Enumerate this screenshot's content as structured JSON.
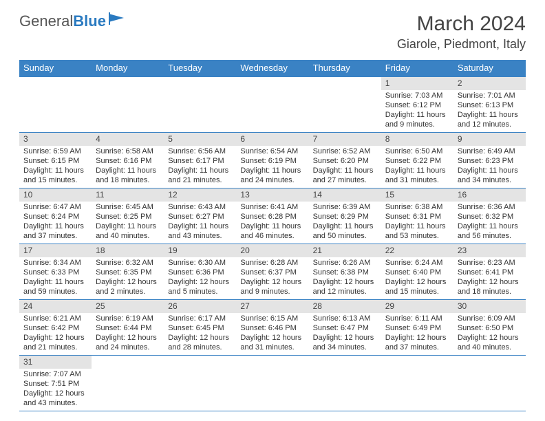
{
  "brand": {
    "part1": "General",
    "part2": "Blue"
  },
  "title": "March 2024",
  "location": "Giarole, Piedmont, Italy",
  "colors": {
    "header_bg": "#3a82c4",
    "header_text": "#ffffff",
    "daynum_bg": "#e4e4e4",
    "rule": "#3a82c4",
    "text": "#333333",
    "logo_grey": "#555555",
    "logo_blue": "#2a7ac0"
  },
  "day_headers": [
    "Sunday",
    "Monday",
    "Tuesday",
    "Wednesday",
    "Thursday",
    "Friday",
    "Saturday"
  ],
  "weeks": [
    [
      {
        "n": "",
        "sr": "",
        "ss": "",
        "dl": ""
      },
      {
        "n": "",
        "sr": "",
        "ss": "",
        "dl": ""
      },
      {
        "n": "",
        "sr": "",
        "ss": "",
        "dl": ""
      },
      {
        "n": "",
        "sr": "",
        "ss": "",
        "dl": ""
      },
      {
        "n": "",
        "sr": "",
        "ss": "",
        "dl": ""
      },
      {
        "n": "1",
        "sr": "Sunrise: 7:03 AM",
        "ss": "Sunset: 6:12 PM",
        "dl": "Daylight: 11 hours and 9 minutes."
      },
      {
        "n": "2",
        "sr": "Sunrise: 7:01 AM",
        "ss": "Sunset: 6:13 PM",
        "dl": "Daylight: 11 hours and 12 minutes."
      }
    ],
    [
      {
        "n": "3",
        "sr": "Sunrise: 6:59 AM",
        "ss": "Sunset: 6:15 PM",
        "dl": "Daylight: 11 hours and 15 minutes."
      },
      {
        "n": "4",
        "sr": "Sunrise: 6:58 AM",
        "ss": "Sunset: 6:16 PM",
        "dl": "Daylight: 11 hours and 18 minutes."
      },
      {
        "n": "5",
        "sr": "Sunrise: 6:56 AM",
        "ss": "Sunset: 6:17 PM",
        "dl": "Daylight: 11 hours and 21 minutes."
      },
      {
        "n": "6",
        "sr": "Sunrise: 6:54 AM",
        "ss": "Sunset: 6:19 PM",
        "dl": "Daylight: 11 hours and 24 minutes."
      },
      {
        "n": "7",
        "sr": "Sunrise: 6:52 AM",
        "ss": "Sunset: 6:20 PM",
        "dl": "Daylight: 11 hours and 27 minutes."
      },
      {
        "n": "8",
        "sr": "Sunrise: 6:50 AM",
        "ss": "Sunset: 6:22 PM",
        "dl": "Daylight: 11 hours and 31 minutes."
      },
      {
        "n": "9",
        "sr": "Sunrise: 6:49 AM",
        "ss": "Sunset: 6:23 PM",
        "dl": "Daylight: 11 hours and 34 minutes."
      }
    ],
    [
      {
        "n": "10",
        "sr": "Sunrise: 6:47 AM",
        "ss": "Sunset: 6:24 PM",
        "dl": "Daylight: 11 hours and 37 minutes."
      },
      {
        "n": "11",
        "sr": "Sunrise: 6:45 AM",
        "ss": "Sunset: 6:25 PM",
        "dl": "Daylight: 11 hours and 40 minutes."
      },
      {
        "n": "12",
        "sr": "Sunrise: 6:43 AM",
        "ss": "Sunset: 6:27 PM",
        "dl": "Daylight: 11 hours and 43 minutes."
      },
      {
        "n": "13",
        "sr": "Sunrise: 6:41 AM",
        "ss": "Sunset: 6:28 PM",
        "dl": "Daylight: 11 hours and 46 minutes."
      },
      {
        "n": "14",
        "sr": "Sunrise: 6:39 AM",
        "ss": "Sunset: 6:29 PM",
        "dl": "Daylight: 11 hours and 50 minutes."
      },
      {
        "n": "15",
        "sr": "Sunrise: 6:38 AM",
        "ss": "Sunset: 6:31 PM",
        "dl": "Daylight: 11 hours and 53 minutes."
      },
      {
        "n": "16",
        "sr": "Sunrise: 6:36 AM",
        "ss": "Sunset: 6:32 PM",
        "dl": "Daylight: 11 hours and 56 minutes."
      }
    ],
    [
      {
        "n": "17",
        "sr": "Sunrise: 6:34 AM",
        "ss": "Sunset: 6:33 PM",
        "dl": "Daylight: 11 hours and 59 minutes."
      },
      {
        "n": "18",
        "sr": "Sunrise: 6:32 AM",
        "ss": "Sunset: 6:35 PM",
        "dl": "Daylight: 12 hours and 2 minutes."
      },
      {
        "n": "19",
        "sr": "Sunrise: 6:30 AM",
        "ss": "Sunset: 6:36 PM",
        "dl": "Daylight: 12 hours and 5 minutes."
      },
      {
        "n": "20",
        "sr": "Sunrise: 6:28 AM",
        "ss": "Sunset: 6:37 PM",
        "dl": "Daylight: 12 hours and 9 minutes."
      },
      {
        "n": "21",
        "sr": "Sunrise: 6:26 AM",
        "ss": "Sunset: 6:38 PM",
        "dl": "Daylight: 12 hours and 12 minutes."
      },
      {
        "n": "22",
        "sr": "Sunrise: 6:24 AM",
        "ss": "Sunset: 6:40 PM",
        "dl": "Daylight: 12 hours and 15 minutes."
      },
      {
        "n": "23",
        "sr": "Sunrise: 6:23 AM",
        "ss": "Sunset: 6:41 PM",
        "dl": "Daylight: 12 hours and 18 minutes."
      }
    ],
    [
      {
        "n": "24",
        "sr": "Sunrise: 6:21 AM",
        "ss": "Sunset: 6:42 PM",
        "dl": "Daylight: 12 hours and 21 minutes."
      },
      {
        "n": "25",
        "sr": "Sunrise: 6:19 AM",
        "ss": "Sunset: 6:44 PM",
        "dl": "Daylight: 12 hours and 24 minutes."
      },
      {
        "n": "26",
        "sr": "Sunrise: 6:17 AM",
        "ss": "Sunset: 6:45 PM",
        "dl": "Daylight: 12 hours and 28 minutes."
      },
      {
        "n": "27",
        "sr": "Sunrise: 6:15 AM",
        "ss": "Sunset: 6:46 PM",
        "dl": "Daylight: 12 hours and 31 minutes."
      },
      {
        "n": "28",
        "sr": "Sunrise: 6:13 AM",
        "ss": "Sunset: 6:47 PM",
        "dl": "Daylight: 12 hours and 34 minutes."
      },
      {
        "n": "29",
        "sr": "Sunrise: 6:11 AM",
        "ss": "Sunset: 6:49 PM",
        "dl": "Daylight: 12 hours and 37 minutes."
      },
      {
        "n": "30",
        "sr": "Sunrise: 6:09 AM",
        "ss": "Sunset: 6:50 PM",
        "dl": "Daylight: 12 hours and 40 minutes."
      }
    ],
    [
      {
        "n": "31",
        "sr": "Sunrise: 7:07 AM",
        "ss": "Sunset: 7:51 PM",
        "dl": "Daylight: 12 hours and 43 minutes."
      },
      {
        "n": "",
        "sr": "",
        "ss": "",
        "dl": ""
      },
      {
        "n": "",
        "sr": "",
        "ss": "",
        "dl": ""
      },
      {
        "n": "",
        "sr": "",
        "ss": "",
        "dl": ""
      },
      {
        "n": "",
        "sr": "",
        "ss": "",
        "dl": ""
      },
      {
        "n": "",
        "sr": "",
        "ss": "",
        "dl": ""
      },
      {
        "n": "",
        "sr": "",
        "ss": "",
        "dl": ""
      }
    ]
  ]
}
